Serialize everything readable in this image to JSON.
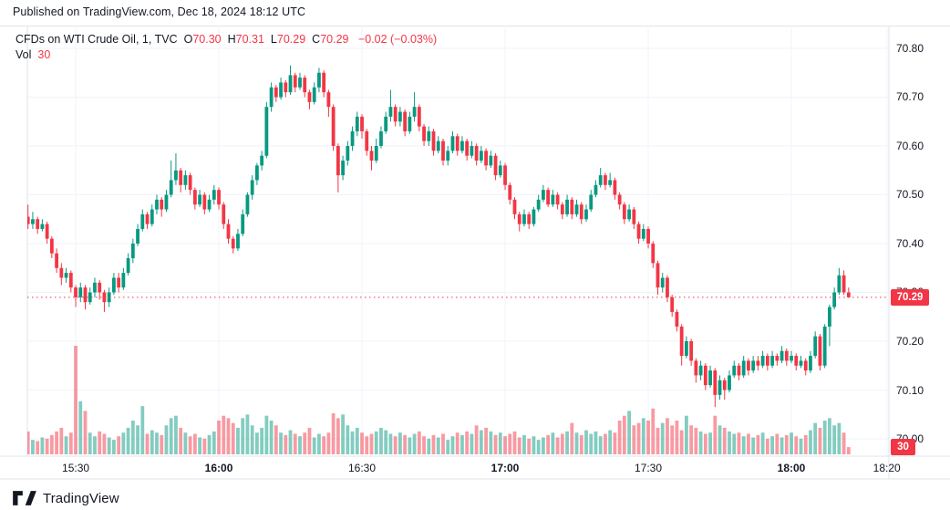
{
  "banner": {
    "text": "Published on TradingView.com, Dec 18, 2024 18:12 UTC"
  },
  "legend": {
    "title": "CFDs on WTI Crude Oil, 1, TVC",
    "ohlc_items": [
      {
        "k": "O",
        "v": "70.30"
      },
      {
        "k": "H",
        "v": "70.31"
      },
      {
        "k": "L",
        "v": "70.29"
      },
      {
        "k": "C",
        "v": "70.29"
      }
    ],
    "change": "−0.02 (−0.03%)",
    "vol_label": "Vol",
    "vol_value": "30"
  },
  "price_badge": "70.29",
  "vol_badge": "30",
  "footer": {
    "brand": "TradingView"
  },
  "colors": {
    "up": "#089981",
    "down": "#f23645",
    "vol_up": "rgba(8,153,129,0.5)",
    "vol_down": "rgba(242,54,69,0.5)",
    "grid": "#f0f3fa",
    "border": "#e0e3eb",
    "text": "#131722",
    "accent_red": "#f23645",
    "badge_text": "#ffffff"
  },
  "chart_data": {
    "type": "candlestick+volume",
    "symbol": "CFDs on WTI Crude Oil",
    "interval": "1",
    "exchange": "TVC",
    "last": {
      "o": 70.3,
      "h": 70.31,
      "l": 70.29,
      "c": 70.29,
      "change": -0.02,
      "change_pct": -0.03
    },
    "session_start": "15:20",
    "session_end": "18:12",
    "grid": true,
    "y_ticks": [
      70.8,
      70.7,
      70.6,
      70.5,
      70.4,
      70.3,
      70.2,
      70.1,
      70.0
    ],
    "x_ticks": [
      {
        "label": "15:30",
        "minute": 10,
        "bold": false
      },
      {
        "label": "16:00",
        "minute": 40,
        "bold": true
      },
      {
        "label": "16:30",
        "minute": 70,
        "bold": false
      },
      {
        "label": "17:00",
        "minute": 100,
        "bold": true
      },
      {
        "label": "17:30",
        "minute": 130,
        "bold": false
      },
      {
        "label": "18:00",
        "minute": 160,
        "bold": true
      },
      {
        "label": "18:20",
        "minute": 180,
        "bold": false
      }
    ],
    "price_range": [
      69.9645,
      70.8467
    ],
    "open_equals_previous_close": true,
    "first_open": 70.455,
    "hlc": [
      [
        70.48,
        70.43,
        70.44
      ],
      [
        70.465,
        70.43,
        70.45
      ],
      [
        70.455,
        70.42,
        70.43
      ],
      [
        70.45,
        70.425,
        70.44
      ],
      [
        70.445,
        70.4,
        70.41
      ],
      [
        70.415,
        70.37,
        70.38
      ],
      [
        70.39,
        70.34,
        70.35
      ],
      [
        70.36,
        70.315,
        70.33
      ],
      [
        70.35,
        70.32,
        70.34
      ],
      [
        70.345,
        70.3,
        70.31
      ],
      [
        70.315,
        70.27,
        70.29
      ],
      [
        70.32,
        70.28,
        70.31
      ],
      [
        70.315,
        70.265,
        70.28
      ],
      [
        70.31,
        70.275,
        70.3
      ],
      [
        70.33,
        70.29,
        70.32
      ],
      [
        70.325,
        70.285,
        70.3
      ],
      [
        70.305,
        70.26,
        70.28
      ],
      [
        70.31,
        70.27,
        70.3
      ],
      [
        70.34,
        70.295,
        70.33
      ],
      [
        70.34,
        70.3,
        70.31
      ],
      [
        70.35,
        70.305,
        70.34
      ],
      [
        70.38,
        70.335,
        70.37
      ],
      [
        70.41,
        70.36,
        70.4
      ],
      [
        70.44,
        70.395,
        70.43
      ],
      [
        70.47,
        70.425,
        70.46
      ],
      [
        70.465,
        70.43,
        70.44
      ],
      [
        70.48,
        70.435,
        70.47
      ],
      [
        70.5,
        70.46,
        70.49
      ],
      [
        70.495,
        70.455,
        70.47
      ],
      [
        70.51,
        70.465,
        70.5
      ],
      [
        70.57,
        70.495,
        70.53
      ],
      [
        70.585,
        70.52,
        70.55
      ],
      [
        70.555,
        70.505,
        70.52
      ],
      [
        70.55,
        70.51,
        70.54
      ],
      [
        70.545,
        70.5,
        70.51
      ],
      [
        70.515,
        70.47,
        70.48
      ],
      [
        70.51,
        70.475,
        70.5
      ],
      [
        70.505,
        70.46,
        70.47
      ],
      [
        70.5,
        70.465,
        70.49
      ],
      [
        70.52,
        70.48,
        70.51
      ],
      [
        70.515,
        70.47,
        70.48
      ],
      [
        70.485,
        70.43,
        70.44
      ],
      [
        70.45,
        70.4,
        70.41
      ],
      [
        70.415,
        70.38,
        70.39
      ],
      [
        70.43,
        70.385,
        70.42
      ],
      [
        70.47,
        70.415,
        70.46
      ],
      [
        70.505,
        70.455,
        70.5
      ],
      [
        70.54,
        70.49,
        70.53
      ],
      [
        70.565,
        70.52,
        70.56
      ],
      [
        70.59,
        70.55,
        70.58
      ],
      [
        70.69,
        70.575,
        70.68
      ],
      [
        70.73,
        70.67,
        70.72
      ],
      [
        70.725,
        70.69,
        70.7
      ],
      [
        70.74,
        70.695,
        70.73
      ],
      [
        70.735,
        70.7,
        70.71
      ],
      [
        70.765,
        70.705,
        70.745
      ],
      [
        70.75,
        70.71,
        70.72
      ],
      [
        70.75,
        70.715,
        70.74
      ],
      [
        70.745,
        70.7,
        70.71
      ],
      [
        70.715,
        70.675,
        70.69
      ],
      [
        70.73,
        70.685,
        70.72
      ],
      [
        70.76,
        70.71,
        70.75
      ],
      [
        70.755,
        70.7,
        70.71
      ],
      [
        70.715,
        70.66,
        70.68
      ],
      [
        70.685,
        70.59,
        70.6
      ],
      [
        70.605,
        70.505,
        70.54
      ],
      [
        70.58,
        70.53,
        70.57
      ],
      [
        70.61,
        70.56,
        70.6
      ],
      [
        70.64,
        70.59,
        70.63
      ],
      [
        70.67,
        70.62,
        70.66
      ],
      [
        70.665,
        70.615,
        70.63
      ],
      [
        70.635,
        70.58,
        70.59
      ],
      [
        70.6,
        70.55,
        70.57
      ],
      [
        70.615,
        70.565,
        70.6
      ],
      [
        70.64,
        70.595,
        70.63
      ],
      [
        70.67,
        70.625,
        70.66
      ],
      [
        70.715,
        70.65,
        70.68
      ],
      [
        70.685,
        70.64,
        70.65
      ],
      [
        70.68,
        70.64,
        70.67
      ],
      [
        70.675,
        70.62,
        70.63
      ],
      [
        70.67,
        70.625,
        70.66
      ],
      [
        70.71,
        70.65,
        70.68
      ],
      [
        70.685,
        70.63,
        70.64
      ],
      [
        70.645,
        70.6,
        70.61
      ],
      [
        70.64,
        70.6,
        70.63
      ],
      [
        70.635,
        70.58,
        70.59
      ],
      [
        70.62,
        70.585,
        70.61
      ],
      [
        70.615,
        70.56,
        70.57
      ],
      [
        70.6,
        70.56,
        70.59
      ],
      [
        70.63,
        70.585,
        70.62
      ],
      [
        70.625,
        70.58,
        70.59
      ],
      [
        70.62,
        70.585,
        70.61
      ],
      [
        70.615,
        70.57,
        70.58
      ],
      [
        70.61,
        70.575,
        70.6
      ],
      [
        70.605,
        70.56,
        70.57
      ],
      [
        70.6,
        70.565,
        70.59
      ],
      [
        70.595,
        70.55,
        70.56
      ],
      [
        70.59,
        70.555,
        70.58
      ],
      [
        70.585,
        70.53,
        70.54
      ],
      [
        70.57,
        70.535,
        70.56
      ],
      [
        70.565,
        70.51,
        70.52
      ],
      [
        70.525,
        70.48,
        70.49
      ],
      [
        70.495,
        70.45,
        70.46
      ],
      [
        70.465,
        70.425,
        70.44
      ],
      [
        70.47,
        70.435,
        70.46
      ],
      [
        70.465,
        70.43,
        70.44
      ],
      [
        70.475,
        70.435,
        70.47
      ],
      [
        70.5,
        70.465,
        70.49
      ],
      [
        70.52,
        70.485,
        70.51
      ],
      [
        70.515,
        70.475,
        70.48
      ],
      [
        70.51,
        70.475,
        70.5
      ],
      [
        70.505,
        70.47,
        70.48
      ],
      [
        70.485,
        70.45,
        70.46
      ],
      [
        70.5,
        70.455,
        70.49
      ],
      [
        70.495,
        70.45,
        70.46
      ],
      [
        70.49,
        70.455,
        70.48
      ],
      [
        70.485,
        70.44,
        70.45
      ],
      [
        70.48,
        70.445,
        70.47
      ],
      [
        70.51,
        70.465,
        70.5
      ],
      [
        70.53,
        70.495,
        70.52
      ],
      [
        70.555,
        70.515,
        70.54
      ],
      [
        70.545,
        70.51,
        70.52
      ],
      [
        70.545,
        70.515,
        70.53
      ],
      [
        70.535,
        70.49,
        70.5
      ],
      [
        70.505,
        70.47,
        70.48
      ],
      [
        70.485,
        70.44,
        70.45
      ],
      [
        70.48,
        70.445,
        70.47
      ],
      [
        70.475,
        70.43,
        70.44
      ],
      [
        70.445,
        70.4,
        70.41
      ],
      [
        70.44,
        70.405,
        70.43
      ],
      [
        70.435,
        70.39,
        70.4
      ],
      [
        70.405,
        70.35,
        70.36
      ],
      [
        70.365,
        70.295,
        70.31
      ],
      [
        70.34,
        70.3,
        70.33
      ],
      [
        70.335,
        70.28,
        70.29
      ],
      [
        70.295,
        70.25,
        70.26
      ],
      [
        70.265,
        70.22,
        70.23
      ],
      [
        70.235,
        70.15,
        70.17
      ],
      [
        70.21,
        70.165,
        70.2
      ],
      [
        70.205,
        70.15,
        70.16
      ],
      [
        70.165,
        70.115,
        70.13
      ],
      [
        70.16,
        70.12,
        70.15
      ],
      [
        70.155,
        70.1,
        70.11
      ],
      [
        70.15,
        70.105,
        70.14
      ],
      [
        70.145,
        70.065,
        70.09
      ],
      [
        70.13,
        70.08,
        70.12
      ],
      [
        70.125,
        70.08,
        70.1
      ],
      [
        70.14,
        70.095,
        70.13
      ],
      [
        70.16,
        70.125,
        70.15
      ],
      [
        70.155,
        70.12,
        70.13
      ],
      [
        70.17,
        70.125,
        70.16
      ],
      [
        70.165,
        70.13,
        70.14
      ],
      [
        70.17,
        70.135,
        70.16
      ],
      [
        70.17,
        70.14,
        70.15
      ],
      [
        70.18,
        70.145,
        70.17
      ],
      [
        70.175,
        70.14,
        70.15
      ],
      [
        70.18,
        70.145,
        70.17
      ],
      [
        70.175,
        70.15,
        70.16
      ],
      [
        70.19,
        70.155,
        70.18
      ],
      [
        70.185,
        70.15,
        70.16
      ],
      [
        70.18,
        70.155,
        70.17
      ],
      [
        70.175,
        70.14,
        70.15
      ],
      [
        70.17,
        70.145,
        70.16
      ],
      [
        70.165,
        70.13,
        70.14
      ],
      [
        70.18,
        70.135,
        70.17
      ],
      [
        70.22,
        70.165,
        70.21
      ],
      [
        70.215,
        70.14,
        70.15
      ],
      [
        70.235,
        70.145,
        70.23
      ],
      [
        70.275,
        70.19,
        70.27
      ],
      [
        70.31,
        70.265,
        70.3
      ],
      [
        70.35,
        70.295,
        70.335
      ],
      [
        70.345,
        70.295,
        70.3
      ],
      [
        70.31,
        70.29,
        70.29
      ]
    ],
    "volumes": [
      95,
      60,
      55,
      70,
      65,
      80,
      95,
      110,
      75,
      90,
      450,
      220,
      180,
      90,
      75,
      95,
      85,
      70,
      60,
      75,
      90,
      110,
      140,
      120,
      200,
      85,
      100,
      90,
      80,
      120,
      150,
      160,
      110,
      90,
      75,
      85,
      70,
      65,
      80,
      95,
      140,
      160,
      150,
      130,
      110,
      150,
      165,
      120,
      90,
      110,
      160,
      140,
      120,
      90,
      80,
      100,
      85,
      75,
      90,
      110,
      70,
      85,
      75,
      90,
      170,
      150,
      165,
      120,
      95,
      110,
      90,
      75,
      85,
      95,
      110,
      100,
      85,
      75,
      90,
      80,
      70,
      85,
      95,
      75,
      65,
      80,
      70,
      85,
      60,
      75,
      90,
      80,
      95,
      85,
      120,
      100,
      110,
      95,
      80,
      90,
      75,
      85,
      95,
      70,
      80,
      65,
      75,
      60,
      70,
      80,
      90,
      70,
      85,
      95,
      130,
      90,
      80,
      100,
      85,
      95,
      75,
      85,
      100,
      90,
      140,
      160,
      180,
      120,
      130,
      150,
      140,
      190,
      110,
      130,
      150,
      120,
      140,
      100,
      160,
      120,
      110,
      95,
      85,
      90,
      160,
      120,
      110,
      95,
      85,
      90,
      75,
      85,
      70,
      80,
      90,
      65,
      75,
      85,
      70,
      80,
      90,
      75,
      65,
      80,
      100,
      130,
      110,
      140,
      150,
      120,
      130,
      90,
      30
    ],
    "volume_max_units": 450,
    "last_volume": 30
  }
}
